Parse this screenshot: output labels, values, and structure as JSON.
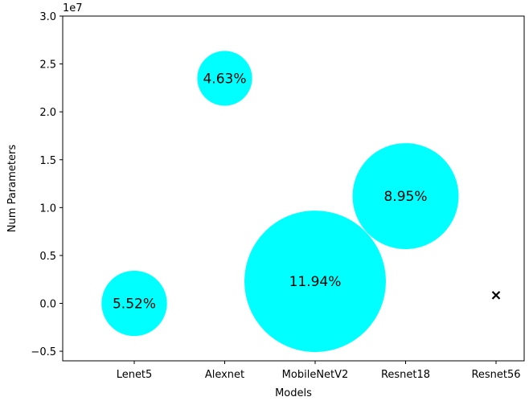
{
  "chart_data": {
    "type": "scatter",
    "title": "",
    "xlabel": "Models",
    "ylabel": "Num Parameters",
    "y_scale_offset": "1e7",
    "ylim": [
      -0.6,
      3.0
    ],
    "yticks": [
      -0.5,
      0.0,
      0.5,
      1.0,
      1.5,
      2.0,
      2.5,
      3.0
    ],
    "ytick_labels": [
      "−0.5",
      "0.0",
      "0.5",
      "1.0",
      "1.5",
      "2.0",
      "2.5",
      "3.0"
    ],
    "categories": [
      "Lenet5",
      "Alexnet",
      "MobileNetV2",
      "Resnet18",
      "Resnet56"
    ],
    "y_values": [
      0.0,
      2.35,
      0.23,
      1.12,
      0.085
    ],
    "bubble_labels": [
      "5.52%",
      "4.63%",
      "11.94%",
      "8.95%",
      ""
    ],
    "bubble_sizes": [
      5.52,
      4.63,
      11.94,
      8.95,
      0
    ],
    "markers": [
      "circle",
      "circle",
      "circle",
      "circle",
      "x"
    ],
    "bubble_color": "#00ffff",
    "marker_color": "#000000",
    "grid": false,
    "legend": "none"
  }
}
